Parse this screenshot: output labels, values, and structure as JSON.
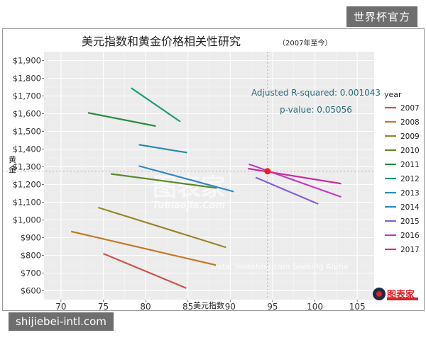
{
  "watermarks": {
    "top_right": "世界杯官方",
    "bottom_left": "shijiebei-intl.com",
    "center": "图表家",
    "center_sub": "Tubiaojia.Com",
    "credit": "Data: Investing.com Seeking Alpha",
    "logo": "图表家"
  },
  "chart_data": {
    "type": "line",
    "title": "美元指数和黄金价格相关性研究",
    "subtitle": "（2007年至今）",
    "xlabel": "美元指数",
    "ylabel": "黄金",
    "xlim": [
      68,
      107
    ],
    "ylim": [
      550,
      1950
    ],
    "x_ticks": [
      70,
      75,
      80,
      85,
      90,
      95,
      100,
      105
    ],
    "y_ticks": [
      600,
      700,
      800,
      900,
      1000,
      1100,
      1200,
      1300,
      1400,
      1500,
      1600,
      1700,
      1800,
      1900
    ],
    "y_tick_labels": [
      "$600",
      "$700",
      "$800",
      "$900",
      "$1,000",
      "$1,100",
      "$1,200",
      "$1,300",
      "$1,400",
      "$1,500",
      "$1,600",
      "$1,700",
      "$1,800",
      "$1,900"
    ],
    "grid": true,
    "legend": {
      "title": "year",
      "placement": "right"
    },
    "annotations": [
      "Adjusted R-squared: 0.001043",
      "p-value: 0.05056"
    ],
    "current_point": {
      "x": 94.4,
      "y": 1275,
      "color": "#e8211f"
    },
    "reference_color": "#e89a9a",
    "series": [
      {
        "name": "2007",
        "color": "#c8554a",
        "x": [
          75.0,
          84.8
        ],
        "y": [
          810,
          615
        ]
      },
      {
        "name": "2008",
        "color": "#c27a26",
        "x": [
          71.2,
          88.3
        ],
        "y": [
          935,
          745
        ]
      },
      {
        "name": "2009",
        "color": "#94862a",
        "x": [
          74.4,
          89.5
        ],
        "y": [
          1070,
          845
        ]
      },
      {
        "name": "2010",
        "color": "#5d8a2a",
        "x": [
          75.9,
          88.4
        ],
        "y": [
          1260,
          1180
        ]
      },
      {
        "name": "2011",
        "color": "#2d8c3c",
        "x": [
          73.2,
          81.2
        ],
        "y": [
          1605,
          1530
        ]
      },
      {
        "name": "2012",
        "color": "#1c9a7a",
        "x": [
          78.3,
          84.1
        ],
        "y": [
          1745,
          1555
        ]
      },
      {
        "name": "2013",
        "color": "#2a8eab",
        "x": [
          79.2,
          84.9
        ],
        "y": [
          1425,
          1380
        ]
      },
      {
        "name": "2014",
        "color": "#2f86c8",
        "x": [
          79.2,
          90.4
        ],
        "y": [
          1305,
          1160
        ]
      },
      {
        "name": "2015",
        "color": "#8460d2",
        "x": [
          93.0,
          100.4
        ],
        "y": [
          1240,
          1090
        ]
      },
      {
        "name": "2016",
        "color": "#c33bc3",
        "x": [
          92.2,
          103.1
        ],
        "y": [
          1315,
          1130
        ]
      },
      {
        "name": "2017",
        "color": "#c82f9c",
        "x": [
          92.1,
          103.1
        ],
        "y": [
          1290,
          1205
        ]
      }
    ]
  }
}
